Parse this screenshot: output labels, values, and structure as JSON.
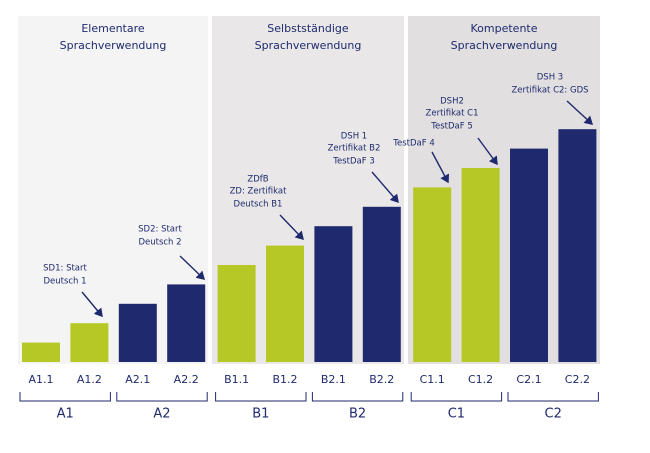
{
  "chart_data": {
    "type": "bar",
    "categories": [
      "A1.1",
      "A1.2",
      "A2.1",
      "A2.2",
      "B1.1",
      "B1.2",
      "B2.1",
      "B2.2",
      "C1.1",
      "C1.2",
      "C2.1",
      "C2.2"
    ],
    "values": [
      1,
      2,
      3,
      4,
      5,
      6,
      7,
      8,
      9,
      10,
      11,
      12
    ],
    "colors": [
      "#b5c826",
      "#b5c826",
      "#1f2a6e",
      "#1f2a6e",
      "#b5c826",
      "#b5c826",
      "#1f2a6e",
      "#1f2a6e",
      "#b5c826",
      "#b5c826",
      "#1f2a6e",
      "#1f2a6e"
    ],
    "panels": [
      {
        "title": [
          "Elementare",
          "Sprachverwendung"
        ]
      },
      {
        "title": [
          "Selbstständige",
          "Sprachverwendung"
        ]
      },
      {
        "title": [
          "Kompetente",
          "Sprachverwendung"
        ]
      }
    ],
    "groups": [
      "A1",
      "A2",
      "B1",
      "B2",
      "C1",
      "C2"
    ],
    "annotations": [
      {
        "lines": [
          "SD1: Start",
          "Deutsch 1"
        ]
      },
      {
        "lines": [
          "SD2: Start",
          "Deutsch 2"
        ]
      },
      {
        "lines": [
          "ZDfB",
          "ZD: Zertifikat",
          "Deutsch B1"
        ]
      },
      {
        "lines": [
          "DSH 1",
          "Zertifikat B2",
          "TestDaF 3"
        ]
      },
      {
        "lines": [
          "TestDaF 4"
        ]
      },
      {
        "lines": [
          "DSH2",
          "Zertifikat C1",
          "TestDaF 5"
        ]
      },
      {
        "lines": [
          "DSH 3",
          "Zertifikat C2: GDS"
        ]
      }
    ]
  }
}
